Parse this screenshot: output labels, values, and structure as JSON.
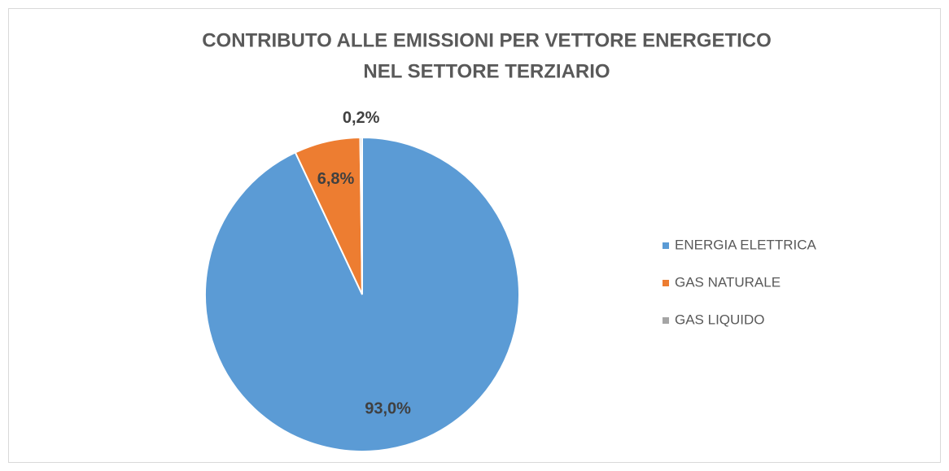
{
  "chart_data": {
    "type": "pie",
    "title": [
      "CONTRIBUTO ALLE EMISSIONI PER VETTORE ENERGETICO",
      "NEL SETTORE TERZIARIO"
    ],
    "categories": [
      "ENERGIA ELETTRICA",
      "GAS NATURALE",
      "GAS LIQUIDO"
    ],
    "values": [
      93.0,
      6.8,
      0.2
    ],
    "value_labels": [
      "93,0%",
      "6,8%",
      "0,2%"
    ],
    "colors": [
      "#5b9bd5",
      "#ed7d31",
      "#a5a5a5"
    ],
    "legend": "right"
  }
}
